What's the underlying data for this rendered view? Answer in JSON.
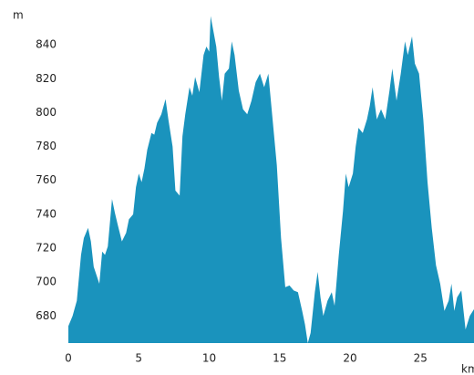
{
  "chart_data": {
    "type": "area",
    "xlabel": "km",
    "ylabel": "m",
    "color": "#1a93bd",
    "xlim": [
      0,
      28.8
    ],
    "ylim": [
      664,
      860
    ],
    "xticks": [
      0,
      5,
      10,
      15,
      20,
      25
    ],
    "yticks": [
      680,
      700,
      720,
      740,
      760,
      780,
      800,
      820,
      840
    ],
    "x": [
      0,
      0.3,
      0.6,
      0.9,
      1.1,
      1.4,
      1.6,
      1.8,
      2.2,
      2.4,
      2.6,
      2.8,
      3.1,
      3.3,
      3.5,
      3.8,
      4.1,
      4.3,
      4.6,
      4.8,
      5.0,
      5.2,
      5.4,
      5.6,
      5.9,
      6.1,
      6.3,
      6.6,
      6.9,
      7.1,
      7.4,
      7.6,
      7.9,
      8.1,
      8.3,
      8.6,
      8.8,
      9.0,
      9.3,
      9.6,
      9.8,
      10.0,
      10.1,
      10.3,
      10.5,
      10.7,
      10.9,
      11.1,
      11.4,
      11.6,
      11.8,
      12.1,
      12.4,
      12.7,
      13.0,
      13.3,
      13.6,
      13.9,
      14.2,
      14.5,
      14.8,
      15.1,
      15.4,
      15.7,
      16.0,
      16.3,
      16.6,
      16.8,
      17.0,
      17.2,
      17.5,
      17.7,
      17.9,
      18.1,
      18.4,
      18.7,
      18.9,
      19.2,
      19.5,
      19.7,
      19.9,
      20.2,
      20.4,
      20.6,
      20.9,
      21.2,
      21.4,
      21.6,
      21.9,
      22.2,
      22.5,
      22.8,
      23.0,
      23.3,
      23.6,
      23.9,
      24.1,
      24.4,
      24.6,
      24.9,
      25.2,
      25.5,
      25.8,
      26.1,
      26.4,
      26.7,
      27.0,
      27.2,
      27.4,
      27.6,
      27.9,
      28.2,
      28.5,
      28.8
    ],
    "y": [
      674,
      680,
      689,
      716,
      726,
      732,
      724,
      709,
      699,
      718,
      716,
      721,
      749,
      741,
      734,
      724,
      729,
      737,
      740,
      756,
      764,
      759,
      767,
      778,
      788,
      787,
      794,
      799,
      808,
      796,
      780,
      754,
      751,
      786,
      799,
      815,
      810,
      821,
      812,
      834,
      839,
      836,
      857,
      848,
      839,
      821,
      807,
      823,
      826,
      842,
      834,
      813,
      802,
      799,
      807,
      818,
      823,
      815,
      823,
      796,
      769,
      726,
      697,
      698,
      695,
      694,
      683,
      675,
      664,
      670,
      694,
      706,
      691,
      680,
      689,
      694,
      686,
      716,
      742,
      764,
      756,
      764,
      780,
      791,
      788,
      796,
      804,
      815,
      796,
      802,
      796,
      813,
      826,
      807,
      823,
      842,
      834,
      845,
      829,
      823,
      796,
      759,
      732,
      710,
      699,
      683,
      689,
      699,
      683,
      691,
      695,
      672,
      680,
      684
    ]
  }
}
